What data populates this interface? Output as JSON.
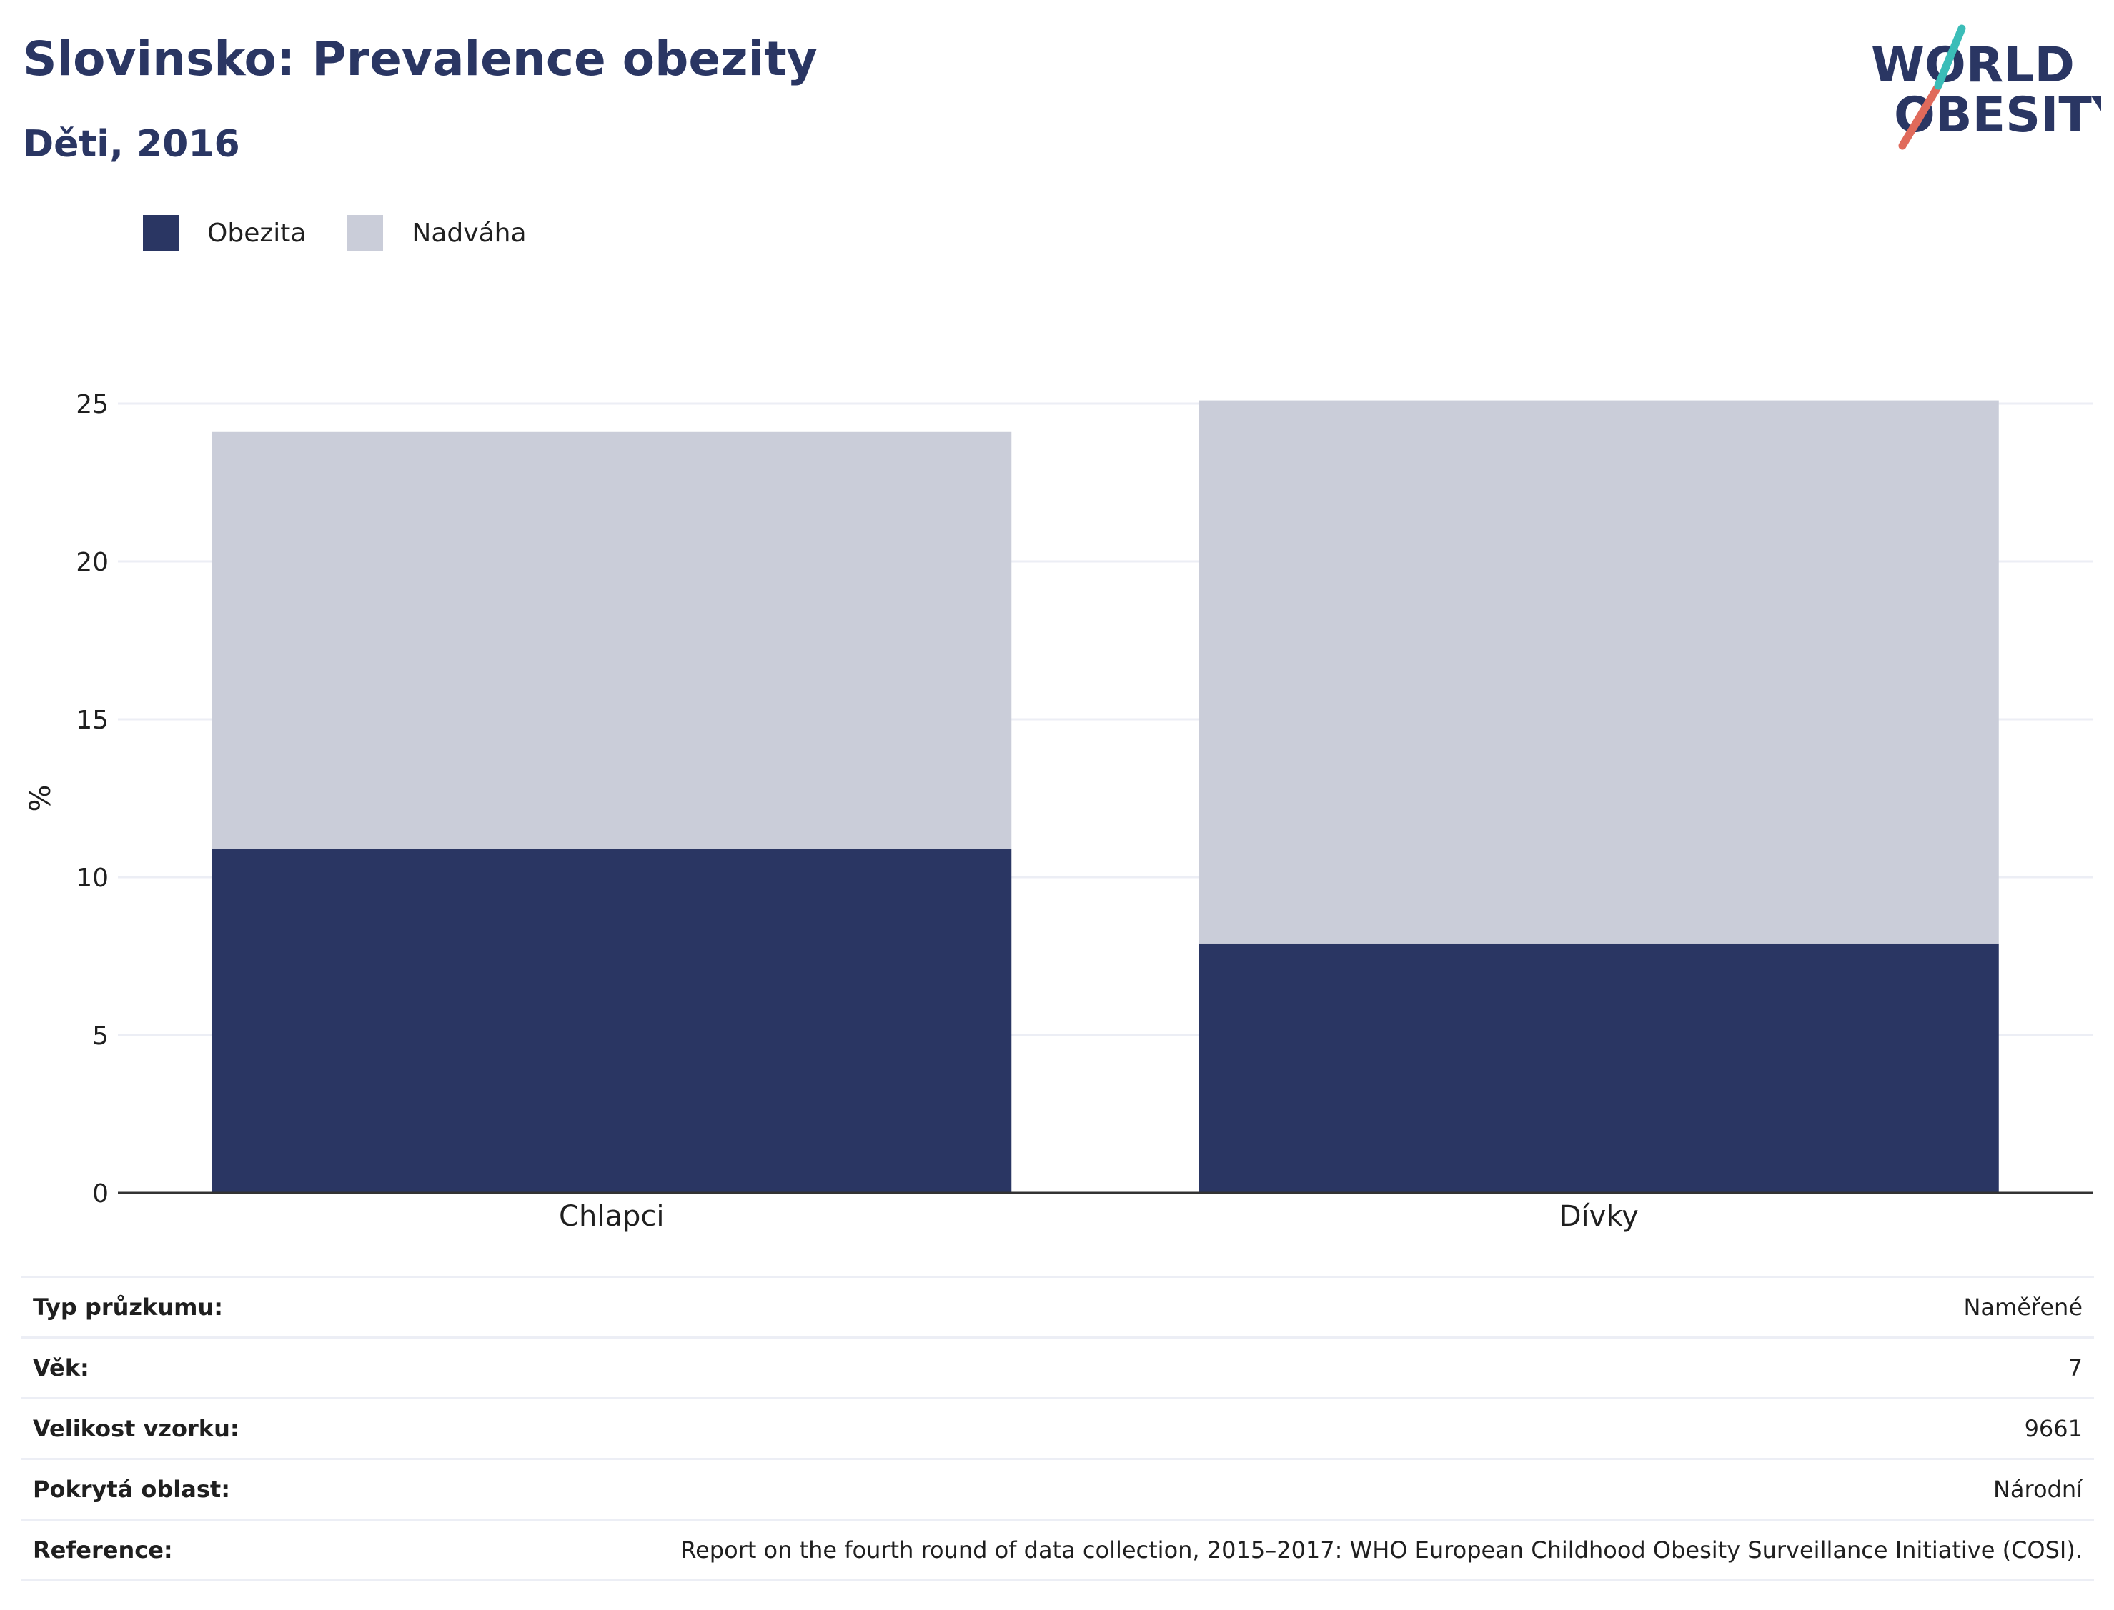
{
  "title": "Slovinsko: Prevalence obezity",
  "subtitle": "Děti, 2016",
  "logo": {
    "line1": "WORLD",
    "line2": "OBESITY",
    "colors": [
      "#2a3663",
      "#e06a5b",
      "#3bbdb8"
    ]
  },
  "colors": {
    "obesity": "#2a3663",
    "overweight": "#cacdd9",
    "grid": "#eceef5",
    "axis": "#333333",
    "text": "#1f1f1f",
    "title": "#2a3663"
  },
  "chart_data": {
    "type": "bar",
    "stacked": true,
    "categories": [
      "Chlapci",
      "Dívky"
    ],
    "series": [
      {
        "name": "Obezita",
        "values": [
          10.9,
          7.9
        ]
      },
      {
        "name": "Nadváha",
        "values": [
          13.2,
          17.2
        ]
      }
    ],
    "ylabel": "%",
    "ylim": [
      0,
      25
    ],
    "yticks": [
      0,
      5,
      10,
      15,
      20,
      25
    ],
    "grid": true,
    "legend": "top-left"
  },
  "info": [
    {
      "label": "Typ průzkumu:",
      "value": "Naměřené"
    },
    {
      "label": "Věk:",
      "value": "7"
    },
    {
      "label": "Velikost vzorku:",
      "value": "9661"
    },
    {
      "label": "Pokrytá oblast:",
      "value": "Národní"
    },
    {
      "label": "Reference:",
      "value": "Report on the fourth round of data collection, 2015–2017: WHO European Childhood Obesity Surveillance Initiative (COSI)."
    }
  ]
}
